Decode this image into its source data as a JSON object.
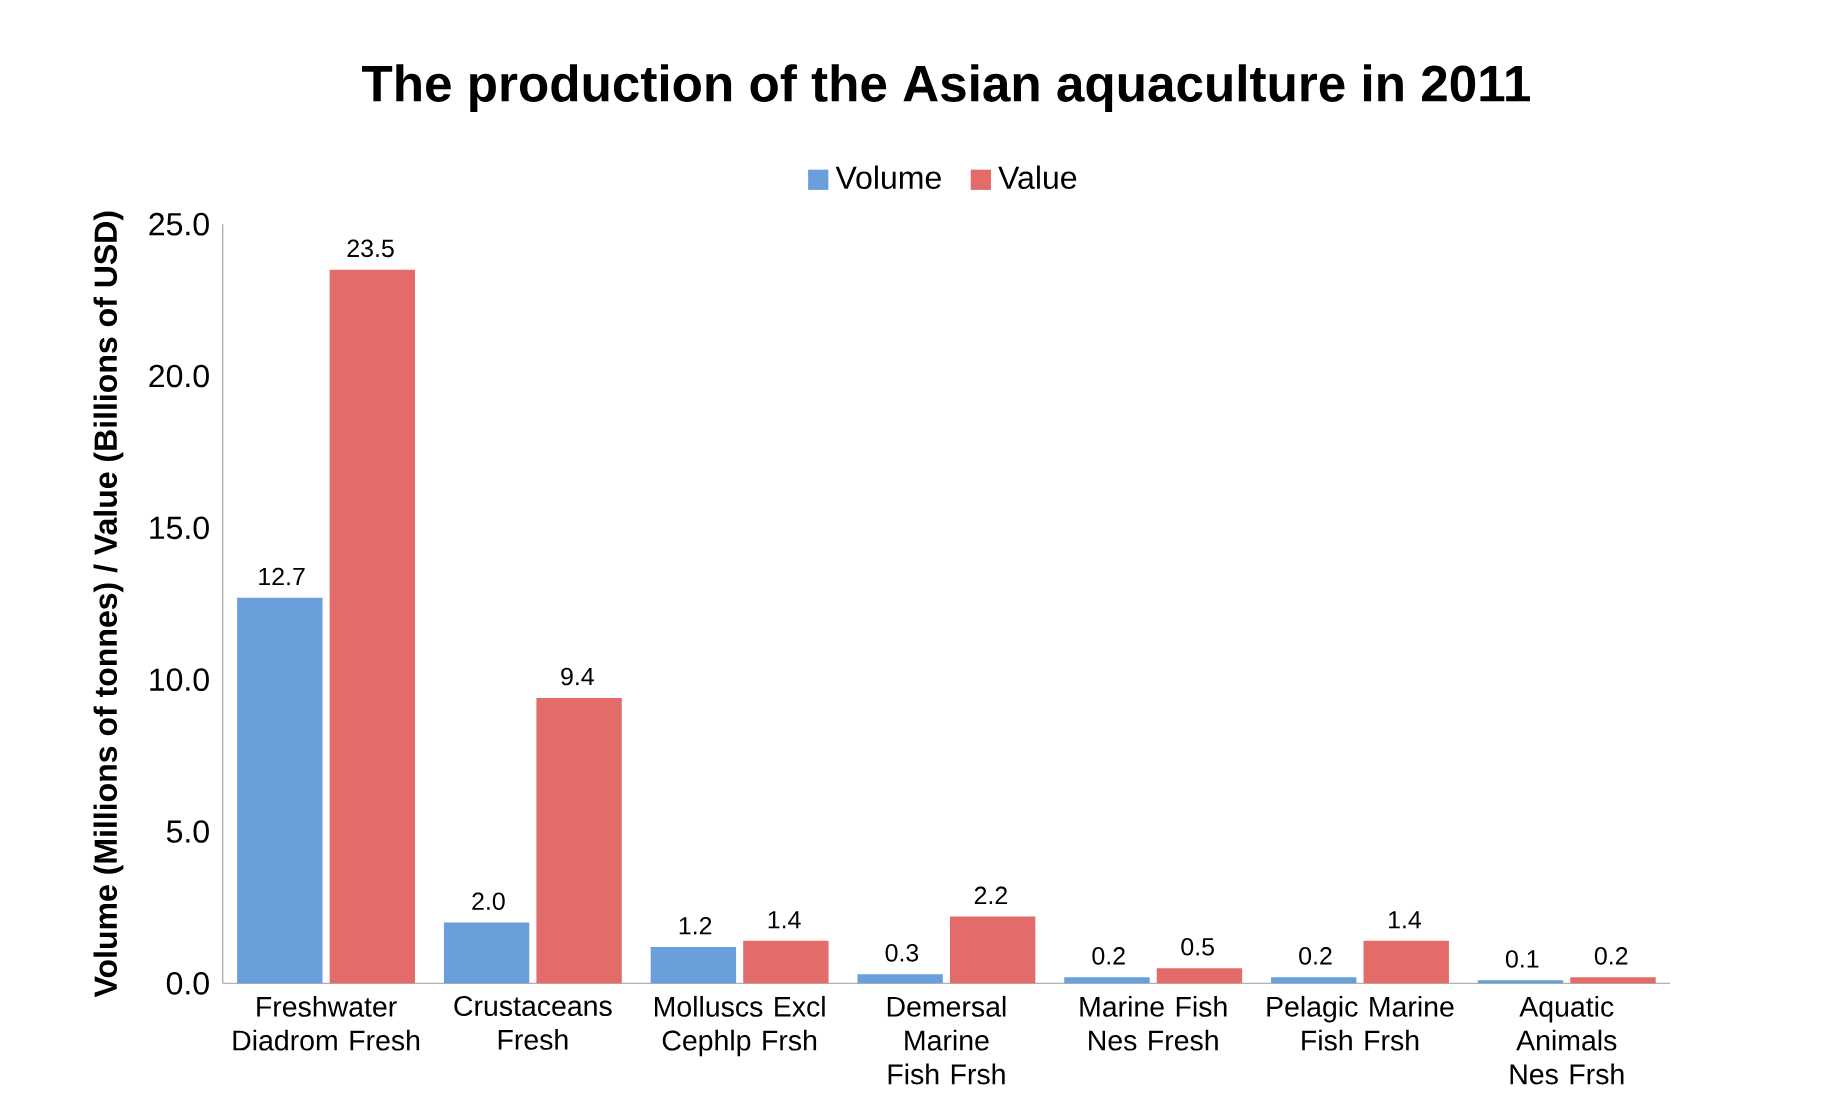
{
  "chart_data": {
    "type": "bar",
    "title": "The production of the Asian aquaculture in 2011",
    "ylabel": "Volume (Millions of tonnes) / Value (Billions of USD)",
    "categories": [
      "Freshwater Diadrom Fresh",
      "Crustaceans Fresh",
      "Molluscs Excl Cephlp Frsh",
      "Demersal Marine Fish Frsh",
      "Marine Fish Nes Fresh",
      "Pelagic Marine Fish Frsh",
      "Aquatic Animals Nes Frsh"
    ],
    "series": [
      {
        "name": "Volume",
        "color": "#6a9fdc",
        "values": [
          12.7,
          2.0,
          1.2,
          0.3,
          0.2,
          0.2,
          0.1
        ],
        "value_labels": [
          "12.7",
          "2.0",
          "1.2",
          "0.3",
          "0.2",
          "0.2",
          "0.1"
        ]
      },
      {
        "name": "Value",
        "color": "#e36c6a",
        "values": [
          23.5,
          9.4,
          1.4,
          2.2,
          0.5,
          1.4,
          0.2
        ],
        "value_labels": [
          "23.5",
          "9.4",
          "1.4",
          "2.2",
          "0.5",
          "1.4",
          "0.2"
        ]
      }
    ],
    "ylim": [
      0,
      25
    ],
    "yticks": [
      {
        "value": 0,
        "label": "0.0"
      },
      {
        "value": 5,
        "label": "5.0"
      },
      {
        "value": 10,
        "label": "10.0"
      },
      {
        "value": 15,
        "label": "15.0"
      },
      {
        "value": 20,
        "label": "20.0"
      },
      {
        "value": 25,
        "label": "25.0"
      }
    ],
    "legend": "top",
    "grid": false
  }
}
